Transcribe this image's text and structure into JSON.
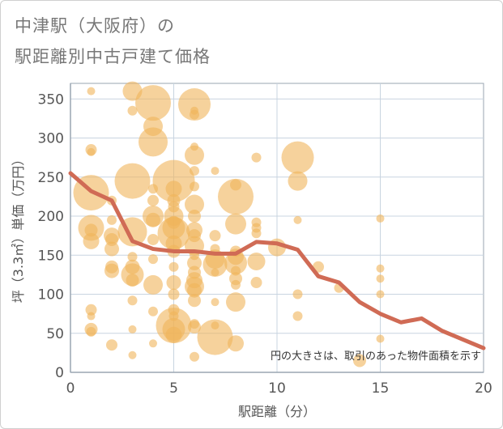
{
  "title_line1": "中津駅（大阪府）の",
  "title_line2": "駅距離別中古戸建て価格",
  "colors": {
    "bubble_fill": "#f0b45a",
    "bubble_opacity": 0.6,
    "line": "#d06b55",
    "grid": "#c8d4e0",
    "axis": "#9aa6b2",
    "plot_bg": "#ffffff"
  },
  "chart_data": {
    "type": "scatter",
    "xlabel": "駅距離（分）",
    "ylabel": "坪（3.3㎡）単価（万円）",
    "xlim": [
      0,
      20
    ],
    "ylim": [
      0,
      370
    ],
    "xticks": [
      0,
      5,
      10,
      15,
      20
    ],
    "yticks": [
      0,
      50,
      100,
      150,
      200,
      250,
      300,
      350
    ],
    "note": "円の大きさは、取引のあった物件面積を示す",
    "bubbles": [
      {
        "x": 1,
        "y": 360,
        "r": 5
      },
      {
        "x": 1,
        "y": 285,
        "r": 7
      },
      {
        "x": 1,
        "y": 282,
        "r": 5
      },
      {
        "x": 1,
        "y": 230,
        "r": 22
      },
      {
        "x": 1,
        "y": 185,
        "r": 16
      },
      {
        "x": 1,
        "y": 182,
        "r": 8
      },
      {
        "x": 1,
        "y": 168,
        "r": 10
      },
      {
        "x": 1,
        "y": 80,
        "r": 7
      },
      {
        "x": 1,
        "y": 72,
        "r": 5
      },
      {
        "x": 1,
        "y": 55,
        "r": 8
      },
      {
        "x": 1,
        "y": 52,
        "r": 6
      },
      {
        "x": 2,
        "y": 220,
        "r": 6
      },
      {
        "x": 2,
        "y": 195,
        "r": 6
      },
      {
        "x": 2,
        "y": 175,
        "r": 10
      },
      {
        "x": 2,
        "y": 170,
        "r": 8
      },
      {
        "x": 2,
        "y": 158,
        "r": 9
      },
      {
        "x": 2,
        "y": 135,
        "r": 8
      },
      {
        "x": 2,
        "y": 130,
        "r": 9
      },
      {
        "x": 2,
        "y": 35,
        "r": 7
      },
      {
        "x": 3,
        "y": 360,
        "r": 12
      },
      {
        "x": 3,
        "y": 335,
        "r": 6
      },
      {
        "x": 3,
        "y": 245,
        "r": 22
      },
      {
        "x": 3,
        "y": 180,
        "r": 18
      },
      {
        "x": 3,
        "y": 148,
        "r": 6
      },
      {
        "x": 3,
        "y": 135,
        "r": 9
      },
      {
        "x": 3,
        "y": 125,
        "r": 14
      },
      {
        "x": 3,
        "y": 118,
        "r": 8
      },
      {
        "x": 3,
        "y": 92,
        "r": 6
      },
      {
        "x": 3,
        "y": 55,
        "r": 5
      },
      {
        "x": 3,
        "y": 22,
        "r": 5
      },
      {
        "x": 4,
        "y": 345,
        "r": 22
      },
      {
        "x": 4,
        "y": 315,
        "r": 12
      },
      {
        "x": 4,
        "y": 295,
        "r": 18
      },
      {
        "x": 4,
        "y": 235,
        "r": 6
      },
      {
        "x": 4,
        "y": 220,
        "r": 7
      },
      {
        "x": 4,
        "y": 200,
        "r": 13
      },
      {
        "x": 4,
        "y": 195,
        "r": 9
      },
      {
        "x": 4,
        "y": 170,
        "r": 7
      },
      {
        "x": 4,
        "y": 145,
        "r": 6
      },
      {
        "x": 4,
        "y": 112,
        "r": 12
      },
      {
        "x": 4,
        "y": 78,
        "r": 6
      },
      {
        "x": 4,
        "y": 37,
        "r": 5
      },
      {
        "x": 5,
        "y": 245,
        "r": 26
      },
      {
        "x": 5,
        "y": 235,
        "r": 10
      },
      {
        "x": 5,
        "y": 220,
        "r": 8
      },
      {
        "x": 5,
        "y": 212,
        "r": 7
      },
      {
        "x": 5,
        "y": 200,
        "r": 12
      },
      {
        "x": 5,
        "y": 192,
        "r": 8
      },
      {
        "x": 5,
        "y": 185,
        "r": 14
      },
      {
        "x": 5,
        "y": 178,
        "r": 20
      },
      {
        "x": 5,
        "y": 165,
        "r": 10
      },
      {
        "x": 5,
        "y": 155,
        "r": 8
      },
      {
        "x": 5,
        "y": 135,
        "r": 6
      },
      {
        "x": 5,
        "y": 115,
        "r": 9
      },
      {
        "x": 5,
        "y": 100,
        "r": 7
      },
      {
        "x": 5,
        "y": 80,
        "r": 7
      },
      {
        "x": 5,
        "y": 72,
        "r": 6
      },
      {
        "x": 5,
        "y": 60,
        "r": 22
      },
      {
        "x": 5,
        "y": 55,
        "r": 14
      },
      {
        "x": 5,
        "y": 48,
        "r": 10
      },
      {
        "x": 6,
        "y": 343,
        "r": 20
      },
      {
        "x": 6,
        "y": 289,
        "r": 5
      },
      {
        "x": 6,
        "y": 278,
        "r": 12
      },
      {
        "x": 6,
        "y": 258,
        "r": 6
      },
      {
        "x": 6,
        "y": 238,
        "r": 6
      },
      {
        "x": 6,
        "y": 215,
        "r": 12
      },
      {
        "x": 6,
        "y": 200,
        "r": 8
      },
      {
        "x": 6,
        "y": 182,
        "r": 10
      },
      {
        "x": 6,
        "y": 175,
        "r": 8
      },
      {
        "x": 6,
        "y": 162,
        "r": 12
      },
      {
        "x": 6,
        "y": 150,
        "r": 6
      },
      {
        "x": 6,
        "y": 140,
        "r": 9
      },
      {
        "x": 6,
        "y": 128,
        "r": 8
      },
      {
        "x": 6,
        "y": 118,
        "r": 10
      },
      {
        "x": 6,
        "y": 110,
        "r": 12
      },
      {
        "x": 6,
        "y": 105,
        "r": 9
      },
      {
        "x": 6,
        "y": 92,
        "r": 8
      },
      {
        "x": 6,
        "y": 62,
        "r": 6
      },
      {
        "x": 6,
        "y": 58,
        "r": 8
      },
      {
        "x": 6,
        "y": 20,
        "r": 6
      },
      {
        "x": 6,
        "y": 335,
        "r": 5
      },
      {
        "x": 6,
        "y": 330,
        "r": 6
      },
      {
        "x": 7,
        "y": 258,
        "r": 5
      },
      {
        "x": 7,
        "y": 175,
        "r": 7
      },
      {
        "x": 7,
        "y": 158,
        "r": 6
      },
      {
        "x": 7,
        "y": 145,
        "r": 12
      },
      {
        "x": 7,
        "y": 138,
        "r": 15
      },
      {
        "x": 7,
        "y": 128,
        "r": 5
      },
      {
        "x": 7,
        "y": 90,
        "r": 5
      },
      {
        "x": 7,
        "y": 60,
        "r": 5
      },
      {
        "x": 7,
        "y": 45,
        "r": 22
      },
      {
        "x": 8,
        "y": 240,
        "r": 7
      },
      {
        "x": 8,
        "y": 225,
        "r": 22
      },
      {
        "x": 8,
        "y": 190,
        "r": 13
      },
      {
        "x": 8,
        "y": 155,
        "r": 7
      },
      {
        "x": 8,
        "y": 148,
        "r": 10
      },
      {
        "x": 8,
        "y": 140,
        "r": 14
      },
      {
        "x": 8,
        "y": 130,
        "r": 6
      },
      {
        "x": 8,
        "y": 120,
        "r": 8
      },
      {
        "x": 8,
        "y": 112,
        "r": 6
      },
      {
        "x": 8,
        "y": 90,
        "r": 12
      },
      {
        "x": 8,
        "y": 37,
        "r": 10
      },
      {
        "x": 9,
        "y": 275,
        "r": 6
      },
      {
        "x": 9,
        "y": 192,
        "r": 6
      },
      {
        "x": 9,
        "y": 185,
        "r": 6
      },
      {
        "x": 9,
        "y": 178,
        "r": 6
      },
      {
        "x": 9,
        "y": 142,
        "r": 11
      },
      {
        "x": 9,
        "y": 115,
        "r": 7
      },
      {
        "x": 10,
        "y": 160,
        "r": 11
      },
      {
        "x": 11,
        "y": 275,
        "r": 20
      },
      {
        "x": 11,
        "y": 245,
        "r": 12
      },
      {
        "x": 11,
        "y": 195,
        "r": 5
      },
      {
        "x": 11,
        "y": 100,
        "r": 6
      },
      {
        "x": 11,
        "y": 72,
        "r": 6
      },
      {
        "x": 12,
        "y": 135,
        "r": 7
      },
      {
        "x": 13,
        "y": 108,
        "r": 6
      },
      {
        "x": 14,
        "y": 15,
        "r": 8
      },
      {
        "x": 15,
        "y": 197,
        "r": 5
      },
      {
        "x": 15,
        "y": 133,
        "r": 5
      },
      {
        "x": 15,
        "y": 120,
        "r": 5
      },
      {
        "x": 15,
        "y": 100,
        "r": 5
      },
      {
        "x": 15,
        "y": 43,
        "r": 5
      }
    ],
    "series": [
      {
        "x": [
          0,
          1,
          2,
          3,
          4,
          5,
          6,
          7,
          8,
          9,
          10,
          11,
          12,
          13,
          14,
          15,
          16,
          17,
          18,
          19,
          20
        ],
        "values": [
          255,
          232,
          220,
          168,
          158,
          155,
          155,
          152,
          152,
          167,
          165,
          157,
          123,
          115,
          90,
          75,
          64,
          69,
          53,
          42,
          31
        ]
      }
    ]
  }
}
